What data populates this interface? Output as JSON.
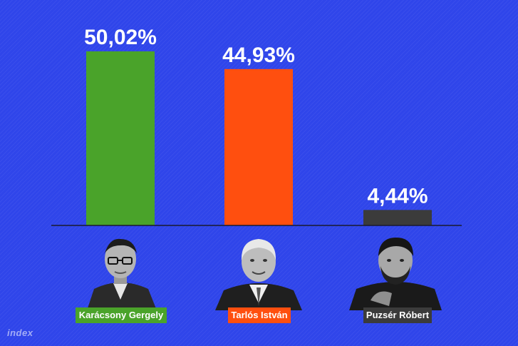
{
  "chart_data": {
    "type": "bar",
    "categories": [
      "Karácsony Gergely",
      "Tarlós István",
      "Puzsér Róbert"
    ],
    "values": [
      50.02,
      44.93,
      4.44
    ],
    "value_labels": [
      "50,02%",
      "44,93%",
      "4,44%"
    ],
    "colors": [
      "#4aa32a",
      "#ff4f0f",
      "#3b3b3b"
    ],
    "title": "",
    "xlabel": "",
    "ylabel": "",
    "ylim": [
      0,
      50.02
    ],
    "grid": false,
    "legend": "none"
  },
  "candidates": [
    {
      "name": "Karácsony Gergely",
      "label_color": "#4aa32a",
      "icon": "portrait-photo"
    },
    {
      "name": "Tarlós István",
      "label_color": "#ff4f0f",
      "icon": "portrait-photo"
    },
    {
      "name": "Puzsér Róbert",
      "label_color": "#3b3b3b",
      "icon": "portrait-photo"
    }
  ],
  "brand": {
    "logo_text": "index"
  },
  "theme": {
    "background": "#2f45ea",
    "text": "#ffffff",
    "baseline": "#1a1a2e"
  }
}
